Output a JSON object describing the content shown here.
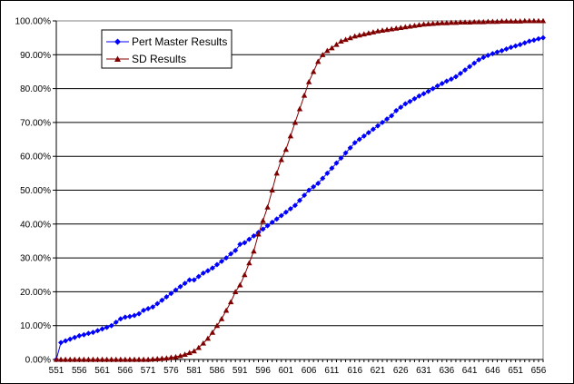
{
  "chart_data": {
    "type": "line",
    "title": "",
    "xlabel": "",
    "ylabel": "",
    "ylim": [
      0,
      1
    ],
    "xlim": [
      551,
      657
    ],
    "grid": "horizontal",
    "legend_position": "top-left",
    "y_ticks": [
      "0.00%",
      "10.00%",
      "20.00%",
      "30.00%",
      "40.00%",
      "50.00%",
      "60.00%",
      "70.00%",
      "80.00%",
      "90.00%",
      "100.00%"
    ],
    "x_ticks": [
      "551",
      "556",
      "561",
      "566",
      "571",
      "576",
      "581",
      "586",
      "591",
      "596",
      "601",
      "606",
      "611",
      "616",
      "621",
      "626",
      "631",
      "636",
      "641",
      "646",
      "651",
      "656"
    ],
    "series": [
      {
        "name": "Pert Master Results",
        "color": "#0000FF",
        "marker": "diamond",
        "x": [
          551,
          552,
          553,
          554,
          555,
          556,
          557,
          558,
          559,
          560,
          561,
          562,
          563,
          564,
          565,
          566,
          567,
          568,
          569,
          570,
          571,
          572,
          573,
          574,
          575,
          576,
          577,
          578,
          579,
          580,
          581,
          582,
          583,
          584,
          585,
          586,
          587,
          588,
          589,
          590,
          591,
          592,
          593,
          594,
          595,
          596,
          597,
          598,
          599,
          600,
          601,
          602,
          603,
          604,
          605,
          606,
          607,
          608,
          609,
          610,
          611,
          612,
          613,
          614,
          615,
          616,
          617,
          618,
          619,
          620,
          621,
          622,
          623,
          624,
          625,
          626,
          627,
          628,
          629,
          630,
          631,
          632,
          633,
          634,
          635,
          636,
          637,
          638,
          639,
          640,
          641,
          642,
          643,
          644,
          645,
          646,
          647,
          648,
          649,
          650,
          651,
          652,
          653,
          654,
          655,
          656,
          657
        ],
        "y": [
          0.0,
          0.05,
          0.055,
          0.06,
          0.065,
          0.07,
          0.073,
          0.077,
          0.08,
          0.085,
          0.09,
          0.095,
          0.1,
          0.11,
          0.12,
          0.125,
          0.127,
          0.13,
          0.135,
          0.145,
          0.15,
          0.155,
          0.165,
          0.175,
          0.185,
          0.195,
          0.205,
          0.215,
          0.225,
          0.235,
          0.235,
          0.245,
          0.255,
          0.262,
          0.27,
          0.28,
          0.29,
          0.3,
          0.312,
          0.322,
          0.34,
          0.345,
          0.355,
          0.365,
          0.375,
          0.385,
          0.395,
          0.405,
          0.415,
          0.425,
          0.435,
          0.445,
          0.455,
          0.47,
          0.485,
          0.5,
          0.51,
          0.52,
          0.535,
          0.55,
          0.565,
          0.58,
          0.595,
          0.61,
          0.625,
          0.64,
          0.65,
          0.66,
          0.67,
          0.68,
          0.69,
          0.7,
          0.71,
          0.72,
          0.735,
          0.745,
          0.755,
          0.762,
          0.77,
          0.778,
          0.785,
          0.792,
          0.8,
          0.808,
          0.815,
          0.822,
          0.828,
          0.835,
          0.845,
          0.855,
          0.865,
          0.875,
          0.885,
          0.892,
          0.898,
          0.903,
          0.908,
          0.912,
          0.917,
          0.922,
          0.926,
          0.93,
          0.935,
          0.94,
          0.943,
          0.947,
          0.95
        ]
      },
      {
        "name": "SD Results",
        "color": "#800000",
        "marker": "triangle",
        "x": [
          551,
          552,
          553,
          554,
          555,
          556,
          557,
          558,
          559,
          560,
          561,
          562,
          563,
          564,
          565,
          566,
          567,
          568,
          569,
          570,
          571,
          572,
          573,
          574,
          575,
          576,
          577,
          578,
          579,
          580,
          581,
          582,
          583,
          584,
          585,
          586,
          587,
          588,
          589,
          590,
          591,
          592,
          593,
          594,
          595,
          596,
          597,
          598,
          599,
          600,
          601,
          602,
          603,
          604,
          605,
          606,
          607,
          608,
          609,
          610,
          611,
          612,
          613,
          614,
          615,
          616,
          617,
          618,
          619,
          620,
          621,
          622,
          623,
          624,
          625,
          626,
          627,
          628,
          629,
          630,
          631,
          632,
          633,
          634,
          635,
          636,
          637,
          638,
          639,
          640,
          641,
          642,
          643,
          644,
          645,
          646,
          647,
          648,
          649,
          650,
          651,
          652,
          653,
          654,
          655,
          656,
          657
        ],
        "y": [
          0.0,
          0.0,
          0.0,
          0.0,
          0.0,
          0.0,
          0.0,
          0.0,
          0.0,
          0.0,
          0.0,
          0.0,
          0.0,
          0.0,
          0.0,
          0.0,
          0.0,
          0.0,
          0.0,
          0.0,
          0.0,
          0.001,
          0.002,
          0.003,
          0.004,
          0.006,
          0.008,
          0.011,
          0.015,
          0.02,
          0.025,
          0.035,
          0.048,
          0.062,
          0.08,
          0.1,
          0.12,
          0.145,
          0.17,
          0.2,
          0.22,
          0.25,
          0.285,
          0.32,
          0.37,
          0.41,
          0.45,
          0.5,
          0.55,
          0.59,
          0.62,
          0.66,
          0.7,
          0.74,
          0.78,
          0.82,
          0.85,
          0.88,
          0.9,
          0.912,
          0.92,
          0.93,
          0.94,
          0.945,
          0.95,
          0.955,
          0.958,
          0.961,
          0.964,
          0.967,
          0.97,
          0.972,
          0.974,
          0.976,
          0.978,
          0.98,
          0.982,
          0.984,
          0.986,
          0.988,
          0.99,
          0.991,
          0.992,
          0.993,
          0.994,
          0.994,
          0.995,
          0.995,
          0.996,
          0.996,
          0.996,
          0.997,
          0.997,
          0.997,
          0.998,
          0.998,
          0.998,
          0.999,
          0.999,
          0.999,
          0.999,
          0.999,
          1.0,
          1.0,
          1.0,
          1.0,
          1.0
        ]
      }
    ]
  }
}
